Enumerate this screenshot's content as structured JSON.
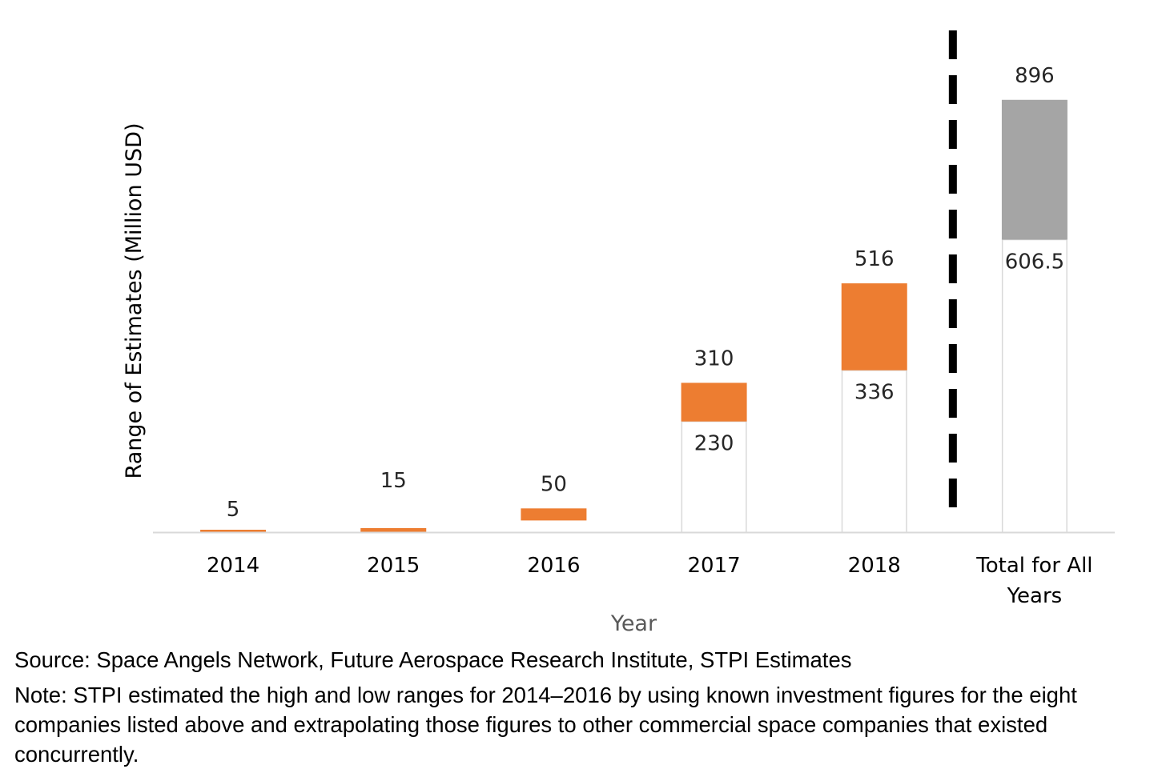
{
  "chart_data": {
    "type": "bar",
    "subtype": "floating-range",
    "xlabel": "Year",
    "ylabel": "Range of Estimates (Million USD)",
    "ylim": [
      0,
      1000
    ],
    "grid": false,
    "legend": "none",
    "categories": [
      "2014",
      "2015",
      "2016",
      "2017",
      "2018",
      "Total for All Years"
    ],
    "tick_labels": [
      [
        "2014"
      ],
      [
        "2015"
      ],
      [
        "2016"
      ],
      [
        "2017"
      ],
      [
        "2018"
      ],
      [
        "Total for All",
        "Years"
      ]
    ],
    "low": [
      null,
      null,
      25,
      230,
      336,
      606.5
    ],
    "high": [
      5,
      15,
      50,
      310,
      516,
      896
    ],
    "high_labels": [
      "5",
      "15",
      "50",
      "310",
      "516",
      "896"
    ],
    "low_labels": [
      "",
      "",
      "",
      "230",
      "336",
      "606.5"
    ],
    "separator": {
      "style": "dashed",
      "between": [
        "2018",
        "Total for All Years"
      ]
    },
    "colors": {
      "range": "#ED7D31",
      "total_range": "#A5A5A5",
      "base_outline": "#D9D9D9",
      "axis": "#D9D9D9",
      "separator": "#000000",
      "xlabel": "#595959"
    }
  },
  "footnotes": {
    "source": "Source: Space Angels Network, Future Aerospace Research Institute, STPI Estimates",
    "note": "Note: STPI estimated the high and low ranges for 2014–2016 by using known investment figures for the eight companies listed above and extrapolating those figures to other commercial space companies that existed concurrently."
  }
}
